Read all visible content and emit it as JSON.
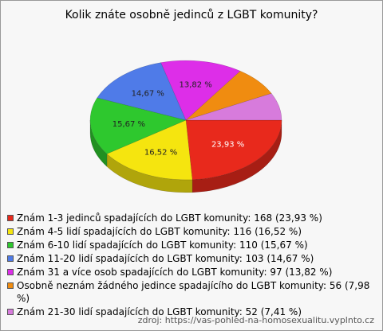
{
  "chart_data": {
    "type": "pie",
    "title": "Kolik znáte osobně jedinců z LGBT komunity?",
    "categories": [
      "Znám 1-3 jedinců spadajících do LGBT komunity: 168 (23,93 %)",
      "Znám 4-5 lidí spadajících do LGBT komunity: 116 (16,52 %)",
      "Znám 6-10 lidí spadajících do LGBT komunity: 110 (15,67 %)",
      "Znám 11-20 lidí spadajících do LGBT komunity: 103 (14,67 %)",
      "Znám 31 a více osob spadajících do LGBT komunity: 97 (13,82 %)",
      "Osobně neznám žádného jedince spadajícího do LGBT komunity: 56 (7,98 %)",
      "Znám 21-30 lidí spadajících do LGBT komunity: 52 (7,41 %)"
    ],
    "values": [
      23.93,
      16.52,
      15.67,
      14.67,
      13.82,
      7.98,
      7.41
    ],
    "value_labels": [
      "23,93 %",
      "16,52 %",
      "15,67 %",
      "14,67 %",
      "13,82 %",
      null,
      null
    ],
    "colors": [
      "#e8291c",
      "#f5e50f",
      "#2ec82e",
      "#4f7be8",
      "#dd2ee8",
      "#f08c10",
      "#d77bdc"
    ],
    "source": "zdroj: https://vas-pohled-na-homosexualitu.vyplnto.cz"
  }
}
